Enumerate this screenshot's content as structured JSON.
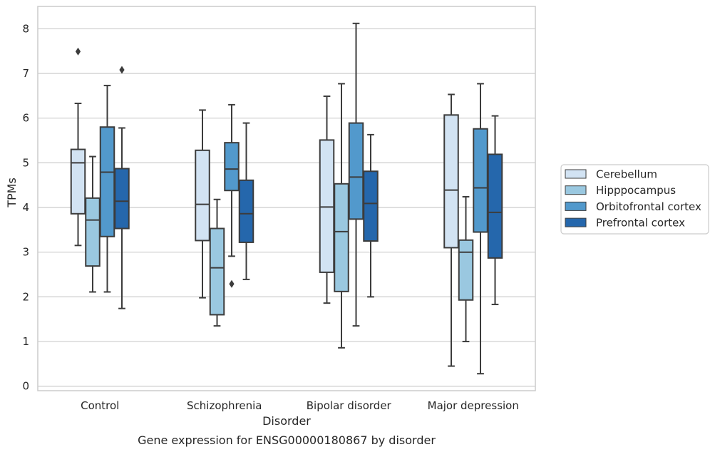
{
  "chart_data": {
    "type": "box",
    "caption": "Gene expression for ENSG00000180867 by disorder",
    "xlabel": "Disorder",
    "ylabel": "TPMs",
    "ylim": [
      -0.1,
      8.5
    ],
    "yticks": [
      0,
      1,
      2,
      3,
      4,
      5,
      6,
      7,
      8
    ],
    "grid": "horizontal",
    "legend": {
      "placement": "right",
      "entries": [
        "Cerebellum",
        "Hipppocampus",
        "Orbitofrontal cortex",
        "Prefrontal cortex"
      ]
    },
    "categories": [
      "Control",
      "Schizophrenia",
      "Bipolar disorder",
      "Major depression"
    ],
    "colors": [
      "#d2e3f3",
      "#9ac8e0",
      "#5299cc",
      "#2567ac"
    ],
    "series": [
      {
        "name": "Cerebellum",
        "boxes": [
          {
            "whislo": 3.15,
            "q1": 3.86,
            "med": 5.0,
            "q3": 5.3,
            "whishi": 6.33,
            "fliers": [
              7.49
            ]
          },
          {
            "whislo": 1.98,
            "q1": 3.26,
            "med": 4.07,
            "q3": 5.28,
            "whishi": 6.18,
            "fliers": []
          },
          {
            "whislo": 1.86,
            "q1": 2.55,
            "med": 4.01,
            "q3": 5.51,
            "whishi": 6.49,
            "fliers": []
          },
          {
            "whislo": 0.45,
            "q1": 3.1,
            "med": 4.39,
            "q3": 6.07,
            "whishi": 6.53,
            "fliers": []
          }
        ]
      },
      {
        "name": "Hipppocampus",
        "boxes": [
          {
            "whislo": 2.11,
            "q1": 2.69,
            "med": 3.72,
            "q3": 4.21,
            "whishi": 5.14,
            "fliers": []
          },
          {
            "whislo": 1.35,
            "q1": 1.6,
            "med": 2.65,
            "q3": 3.53,
            "whishi": 4.18,
            "fliers": []
          },
          {
            "whislo": 0.86,
            "q1": 2.12,
            "med": 3.46,
            "q3": 4.53,
            "whishi": 6.77,
            "fliers": []
          },
          {
            "whislo": 1.0,
            "q1": 1.93,
            "med": 3.0,
            "q3": 3.27,
            "whishi": 4.24,
            "fliers": []
          }
        ]
      },
      {
        "name": "Orbitofrontal cortex",
        "boxes": [
          {
            "whislo": 2.11,
            "q1": 3.35,
            "med": 4.79,
            "q3": 5.8,
            "whishi": 6.73,
            "fliers": []
          },
          {
            "whislo": 2.91,
            "q1": 4.38,
            "med": 4.86,
            "q3": 5.45,
            "whishi": 6.3,
            "fliers": [
              2.29
            ]
          },
          {
            "whislo": 1.35,
            "q1": 3.74,
            "med": 4.68,
            "q3": 5.89,
            "whishi": 8.12,
            "fliers": []
          },
          {
            "whislo": 0.28,
            "q1": 3.45,
            "med": 4.44,
            "q3": 5.76,
            "whishi": 6.77,
            "fliers": []
          }
        ]
      },
      {
        "name": "Prefrontal cortex",
        "boxes": [
          {
            "whislo": 1.74,
            "q1": 3.53,
            "med": 4.14,
            "q3": 4.87,
            "whishi": 5.78,
            "fliers": [
              7.08
            ]
          },
          {
            "whislo": 2.39,
            "q1": 3.22,
            "med": 3.86,
            "q3": 4.61,
            "whishi": 5.89,
            "fliers": []
          },
          {
            "whislo": 2.0,
            "q1": 3.25,
            "med": 4.09,
            "q3": 4.81,
            "whishi": 5.63,
            "fliers": []
          },
          {
            "whislo": 1.83,
            "q1": 2.87,
            "med": 3.89,
            "q3": 5.19,
            "whishi": 6.05,
            "fliers": []
          }
        ]
      }
    ]
  }
}
